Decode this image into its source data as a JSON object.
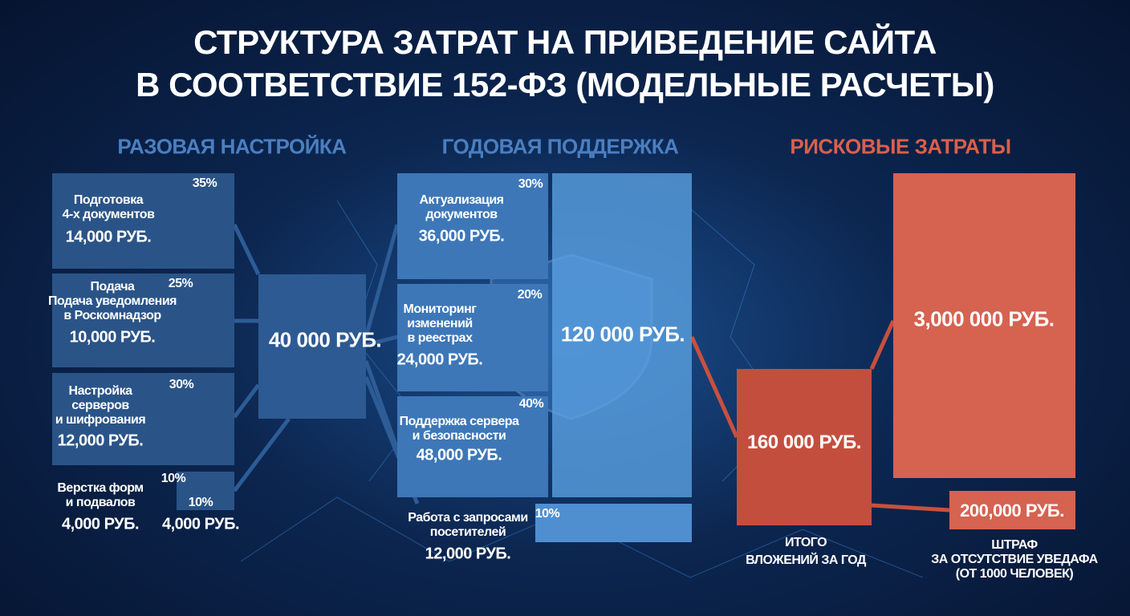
{
  "title": [
    "СТРУКТУРА ЗАТРАТ НА ПРИВЕДЕНИЕ САЙТА",
    "В СООТВЕТСТВИЕ 152-ФЗ (МОДЕЛЬНЫЕ РАСЧЕТЫ)"
  ],
  "one_time": {
    "title": "РАЗОВАЯ НАСТРОЙКА",
    "items": [
      {
        "lines": [
          "Подготовка",
          "4-х документов"
        ],
        "amount": "14,000 РУБ.",
        "percent": "35%"
      },
      {
        "lines": [
          "Подача",
          "Подача уведомления",
          "в Роскомнадзор"
        ],
        "amount": "10,000 РУБ.",
        "percent": "25%"
      },
      {
        "lines": [
          "Настройка",
          "серверов",
          "и шифрования"
        ],
        "amount": "12,000 РУБ.",
        "percent": "30%"
      },
      {
        "lines": [
          "Верстка форм",
          "и подвалов"
        ],
        "amount": "4,000 РУБ.",
        "percent": "10%"
      }
    ],
    "extra": {
      "percent": "10%",
      "amount": "4,000 РУБ."
    },
    "total": "40 000 РУБ."
  },
  "annual": {
    "title": "ГОДОВАЯ ПОДДЕРЖКА",
    "items": [
      {
        "lines": [
          "Актуализация",
          "документов"
        ],
        "amount": "36,000 РУБ.",
        "percent": "30%"
      },
      {
        "lines": [
          "Мониторинг",
          "изменений",
          "в реестрах"
        ],
        "amount": "24,000 РУБ.",
        "percent": "20%"
      },
      {
        "lines": [
          "Поддержка сервера",
          "и безопасности"
        ],
        "amount": "48,000 РУБ.",
        "percent": "40%"
      },
      {
        "lines": [
          "Работа с запросами",
          "посетителей"
        ],
        "amount": "12,000 РУБ.",
        "percent": "10%"
      }
    ],
    "total": "120 000 РУБ."
  },
  "risk": {
    "title": "РИСКОВЫЕ ЗАТРАТЫ",
    "year_total": {
      "amount": "160 000 РУБ.",
      "caption": [
        "ИТОГО",
        "ВЛОЖЕНИЙ ЗА ГОД"
      ]
    },
    "risk_amount": "3,000 000 РУБ.",
    "fine": {
      "amount": "200,000 РУБ.",
      "caption": [
        "ШТРАФ",
        "ЗА ОТСУТСТВИЕ УВЕДАФА",
        "(ОТ 1000 ЧЕЛОВЕК)"
      ]
    }
  }
}
